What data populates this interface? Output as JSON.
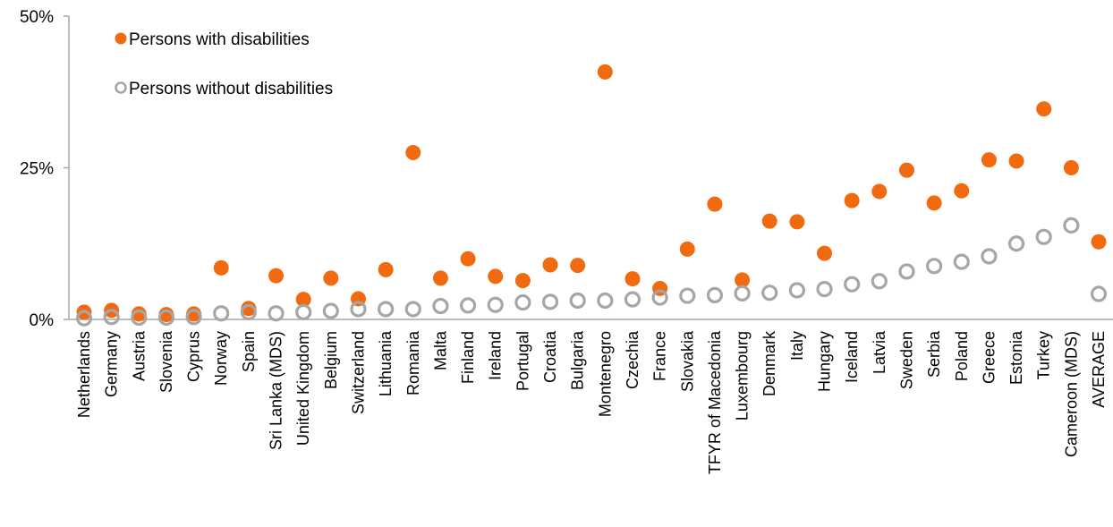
{
  "chart_data": {
    "type": "scatter",
    "title": "",
    "xlabel": "",
    "ylabel": "",
    "ylim": [
      0,
      50
    ],
    "yticks": [
      "0%",
      "25%",
      "50%"
    ],
    "grid": false,
    "legend_position": "top-left",
    "categories": [
      "Netherlands",
      "Germany",
      "Austria",
      "Slovenia",
      "Cyprus",
      "Norway",
      "Spain",
      "Sri Lanka (MDS)",
      "United Kingdom",
      "Belgium",
      "Switzerland",
      "Lithuania",
      "Romania",
      "Malta",
      "Finland",
      "Ireland",
      "Portugal",
      "Croatia",
      "Bulgaria",
      "Montenegro",
      "Czechia",
      "France",
      "Slovakia",
      "TFYR of Macedonia",
      "Luxembourg",
      "Denmark",
      "Italy",
      "Hungary",
      "Iceland",
      "Latvia",
      "Sweden",
      "Serbia",
      "Poland",
      "Greece",
      "Estonia",
      "Turkey",
      "Cameroon (MDS)",
      "AVERAGE"
    ],
    "series": [
      {
        "name": "Persons with disabilities",
        "color": "#f26a10",
        "marker": "filled-circle",
        "values": [
          1.2,
          1.5,
          0.9,
          0.8,
          0.9,
          8.5,
          1.8,
          7.2,
          3.3,
          6.8,
          3.4,
          8.2,
          27.5,
          6.8,
          10.0,
          7.1,
          6.4,
          9.0,
          8.9,
          40.8,
          6.7,
          5.1,
          11.6,
          19.0,
          6.5,
          16.2,
          16.1,
          10.9,
          19.6,
          21.1,
          24.6,
          19.2,
          21.2,
          26.3,
          26.1,
          34.7,
          25.0,
          12.8
        ]
      },
      {
        "name": "Persons without disabilities",
        "color": "#a6a6a6",
        "marker": "hollow-circle",
        "values": [
          0.2,
          0.4,
          0.3,
          0.3,
          0.4,
          1.0,
          1.2,
          1.0,
          1.2,
          1.4,
          1.7,
          1.7,
          1.7,
          2.2,
          2.3,
          2.4,
          2.8,
          2.9,
          3.1,
          3.1,
          3.3,
          3.6,
          3.9,
          4.0,
          4.3,
          4.4,
          4.8,
          5.0,
          5.8,
          6.3,
          7.9,
          8.8,
          9.5,
          10.4,
          12.5,
          13.6,
          15.5,
          4.2
        ]
      }
    ]
  }
}
